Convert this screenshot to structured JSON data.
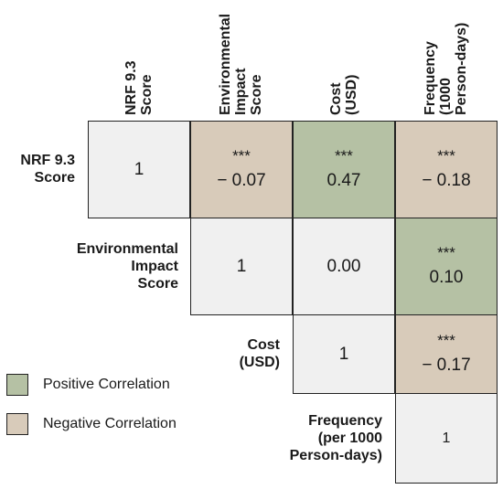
{
  "chart_data": {
    "type": "heatmap",
    "variables": [
      "NRF 9.3\nScore",
      "Environmental\nImpact\nScore",
      "Cost\n(USD)",
      "Frequency\n(1000\nPerson-days)"
    ],
    "row_labels": [
      "NRF 9.3\nScore",
      "Environmental\nImpact\nScore",
      "Cost\n(USD)",
      "Frequency\n(per 1000\nPerson-days)"
    ],
    "cells": [
      [
        {
          "value": "1",
          "stars": "",
          "type": "diagonal"
        },
        {
          "value": "− 0.07",
          "stars": "***",
          "type": "negative"
        },
        {
          "value": "0.47",
          "stars": "***",
          "type": "positive"
        },
        {
          "value": "− 0.18",
          "stars": "***",
          "type": "negative"
        }
      ],
      [
        null,
        {
          "value": "1",
          "stars": "",
          "type": "diagonal"
        },
        {
          "value": "0.00",
          "stars": "",
          "type": "neutral"
        },
        {
          "value": "0.10",
          "stars": "***",
          "type": "positive"
        }
      ],
      [
        null,
        null,
        {
          "value": "1",
          "stars": "",
          "type": "diagonal"
        },
        {
          "value": "− 0.17",
          "stars": "***",
          "type": "negative"
        }
      ],
      [
        null,
        null,
        null,
        {
          "value": "1",
          "stars": "",
          "type": "diagonal"
        }
      ]
    ],
    "colors": {
      "positive": "#b5c1a4",
      "negative": "#d8cbba",
      "neutral": "#f0f0f0",
      "diagonal": "#f0f0f0"
    },
    "legend": [
      {
        "label": "Positive Correlation",
        "type": "positive"
      },
      {
        "label": "Negative Correlation",
        "type": "negative"
      }
    ],
    "legend_placement": "bottom-left"
  }
}
